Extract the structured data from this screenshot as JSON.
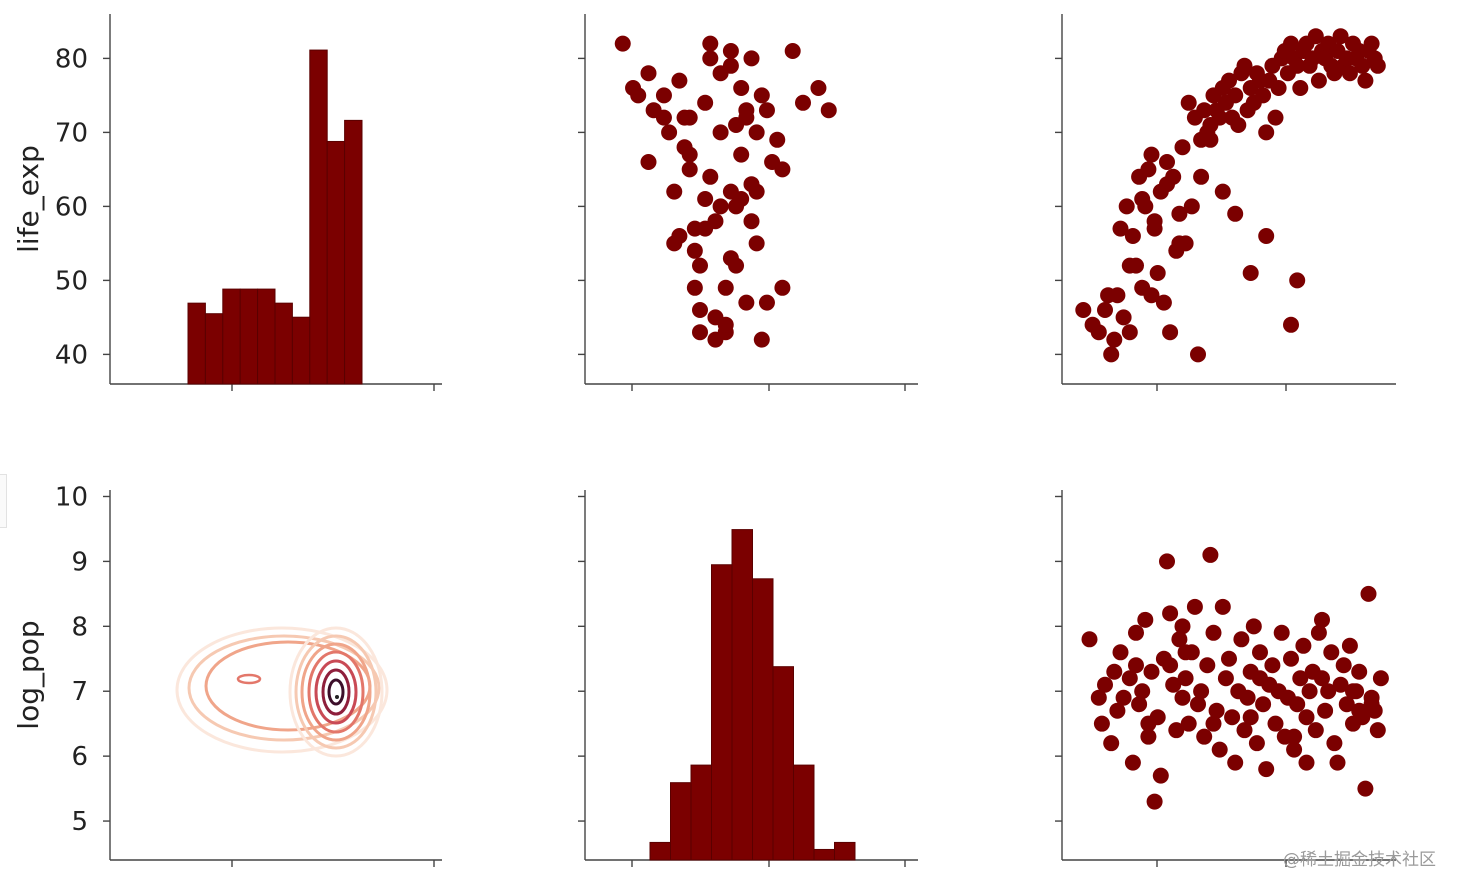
{
  "watermark": "@稀土掘金技术社区",
  "colors": {
    "mark": "#7b0000",
    "mark_edge": "#5a0000",
    "axis": "#444444",
    "contour": [
      "#fbe7dc",
      "#f6c9b2",
      "#f0a58a",
      "#e3776a",
      "#c94a55",
      "#8f1f3c",
      "#3d0f2a"
    ]
  },
  "chart_data": [
    {
      "type": "bar",
      "panel": "life_exp-life_exp",
      "title": "",
      "xlabel": "",
      "ylabel": "life_exp",
      "ylim": [
        36,
        86
      ],
      "yticks": [
        40,
        50,
        60,
        70,
        80
      ],
      "bin_count_ratio": [
        0.23,
        0.2,
        0.27,
        0.27,
        0.27,
        0.23,
        0.19,
        0.95,
        0.69,
        0.75
      ]
    },
    {
      "type": "scatter",
      "panel": "life_exp-log_pop",
      "title": "",
      "xlabel": "",
      "ylabel": "",
      "xlim": [
        4.3,
        10.3
      ],
      "ylim": [
        36,
        86
      ],
      "x": [
        4.8,
        5.0,
        5.1,
        5.3,
        5.3,
        5.4,
        5.6,
        5.7,
        5.8,
        5.8,
        5.9,
        6.0,
        6.1,
        6.1,
        6.2,
        6.2,
        6.3,
        6.3,
        6.4,
        6.4,
        6.5,
        6.5,
        6.6,
        6.6,
        6.7,
        6.7,
        6.8,
        6.8,
        6.9,
        6.9,
        7.0,
        7.0,
        7.1,
        7.1,
        7.2,
        7.2,
        7.3,
        7.3,
        7.4,
        7.4,
        7.5,
        7.6,
        7.7,
        7.8,
        7.9,
        8.1,
        8.3,
        8.6,
        8.8,
        6.5,
        6.9,
        7.2,
        7.0,
        6.6,
        6.3,
        7.5,
        7.9,
        6.4,
        6.8,
        7.3,
        6.1,
        5.9,
        7.6,
        7.1,
        6.7,
        6.2,
        7.4,
        5.6,
        6.0,
        6.9
      ],
      "y": [
        82,
        76,
        75,
        78,
        66,
        73,
        75,
        70,
        62,
        55,
        56,
        72,
        67,
        65,
        57,
        49,
        43,
        46,
        74,
        61,
        80,
        64,
        42,
        58,
        78,
        70,
        49,
        43,
        81,
        62,
        71,
        52,
        76,
        61,
        73,
        47,
        80,
        58,
        55,
        70,
        75,
        73,
        66,
        69,
        65,
        81,
        74,
        76,
        73,
        82,
        79,
        72,
        60,
        45,
        52,
        42,
        49,
        57,
        44,
        63,
        72,
        77,
        47,
        67,
        60,
        54,
        62,
        72,
        68,
        53
      ]
    },
    {
      "type": "scatter",
      "panel": "life_exp-third_variable",
      "title": "",
      "xlabel": "",
      "ylabel": "",
      "xlim": [
        0,
        100
      ],
      "ylim": [
        36,
        86
      ],
      "x": [
        3,
        6,
        8,
        10,
        11,
        13,
        15,
        16,
        17,
        18,
        19,
        20,
        21,
        22,
        23,
        24,
        25,
        26,
        27,
        28,
        29,
        30,
        31,
        32,
        33,
        34,
        35,
        36,
        37,
        38,
        39,
        40,
        41,
        42,
        43,
        44,
        45,
        46,
        47,
        48,
        49,
        50,
        51,
        52,
        53,
        54,
        55,
        56,
        57,
        58,
        59,
        60,
        61,
        62,
        63,
        64,
        65,
        66,
        67,
        68,
        69,
        70,
        71,
        72,
        73,
        74,
        75,
        76,
        77,
        78,
        79,
        80,
        81,
        82,
        83,
        84,
        85,
        86,
        87,
        88,
        89,
        90,
        91,
        92,
        93,
        94,
        95,
        96,
        97,
        98,
        18,
        22,
        26,
        14,
        30,
        12,
        25,
        34,
        41,
        52,
        57,
        62,
        70,
        72,
        48,
        44
      ],
      "y": [
        46,
        44,
        43,
        46,
        48,
        42,
        57,
        45,
        60,
        43,
        56,
        52,
        64,
        49,
        60,
        65,
        48,
        57,
        51,
        62,
        47,
        66,
        43,
        64,
        54,
        59,
        68,
        55,
        74,
        60,
        72,
        40,
        69,
        73,
        70,
        71,
        75,
        73,
        72,
        76,
        74,
        77,
        72,
        75,
        71,
        78,
        79,
        73,
        76,
        74,
        78,
        77,
        75,
        70,
        77,
        79,
        72,
        76,
        80,
        81,
        78,
        82,
        80,
        79,
        76,
        81,
        82,
        79,
        80,
        83,
        77,
        81,
        80,
        82,
        79,
        78,
        81,
        83,
        79,
        80,
        78,
        82,
        80,
        81,
        79,
        77,
        81,
        82,
        80,
        79,
        52,
        61,
        58,
        48,
        63,
        40,
        67,
        55,
        64,
        59,
        51,
        56,
        44,
        50,
        62,
        69
      ]
    },
    {
      "type": "heatmap",
      "panel": "log_pop-life_exp",
      "title": "",
      "xlabel": "",
      "ylabel": "log_pop",
      "ylim": [
        4.4,
        10.1
      ],
      "yticks": [
        5,
        6,
        7,
        8,
        9,
        10
      ],
      "kde_peaks": [
        {
          "life_exp": 47,
          "log_pop": 7.15
        },
        {
          "life_exp": 74,
          "log_pop": 6.9
        }
      ]
    },
    {
      "type": "bar",
      "panel": "log_pop-log_pop",
      "title": "",
      "xlabel": "",
      "ylabel": "",
      "bin_count_ratio": [
        0.05,
        0.22,
        0.27,
        0.84,
        0.94,
        0.8,
        0.55,
        0.27,
        0.03,
        0.05
      ]
    },
    {
      "type": "scatter",
      "panel": "log_pop-third_variable",
      "title": "",
      "xlabel": "",
      "ylabel": "",
      "xlim": [
        0,
        100
      ],
      "ylim": [
        4.4,
        10.1
      ],
      "x": [
        5,
        8,
        9,
        10,
        12,
        13,
        14,
        15,
        16,
        18,
        19,
        20,
        21,
        22,
        23,
        24,
        25,
        26,
        27,
        28,
        29,
        30,
        31,
        32,
        33,
        34,
        35,
        36,
        37,
        38,
        39,
        40,
        41,
        42,
        43,
        44,
        45,
        46,
        47,
        48,
        49,
        50,
        51,
        52,
        53,
        54,
        55,
        56,
        57,
        58,
        59,
        60,
        61,
        62,
        63,
        64,
        65,
        66,
        67,
        68,
        69,
        70,
        71,
        72,
        73,
        74,
        75,
        76,
        77,
        78,
        79,
        80,
        81,
        82,
        83,
        84,
        85,
        86,
        87,
        88,
        89,
        90,
        91,
        92,
        93,
        94,
        95,
        96,
        97,
        98,
        99,
        20,
        35,
        36,
        45,
        60,
        75,
        90,
        92,
        24,
        31,
        57,
        71,
        80,
        96
      ],
      "y": [
        7.8,
        6.9,
        6.5,
        7.1,
        6.2,
        7.3,
        6.7,
        7.6,
        6.9,
        7.2,
        5.9,
        7.4,
        6.8,
        7.0,
        8.1,
        6.5,
        7.3,
        5.3,
        6.6,
        5.7,
        7.5,
        9.0,
        8.2,
        7.1,
        6.4,
        7.8,
        6.9,
        7.2,
        6.5,
        7.6,
        8.3,
        6.8,
        7.0,
        6.3,
        7.4,
        9.1,
        7.9,
        6.7,
        6.1,
        8.3,
        7.2,
        7.5,
        6.6,
        5.9,
        7.0,
        7.8,
        6.4,
        6.9,
        7.3,
        8.0,
        6.2,
        7.6,
        6.8,
        5.8,
        7.1,
        7.4,
        6.5,
        7.0,
        7.9,
        6.3,
        6.9,
        7.5,
        6.1,
        6.8,
        7.2,
        7.7,
        6.6,
        7.0,
        7.3,
        6.4,
        7.9,
        8.1,
        6.7,
        7.0,
        7.6,
        6.2,
        5.9,
        7.1,
        7.4,
        6.8,
        7.7,
        6.5,
        7.0,
        7.3,
        6.6,
        5.5,
        8.5,
        6.9,
        6.7,
        6.4,
        7.2,
        7.9,
        8.0,
        7.6,
        6.5,
        7.2,
        5.9,
        7.0,
        6.7,
        6.3,
        7.4,
        6.6,
        6.3,
        7.2,
        6.8
      ]
    }
  ]
}
